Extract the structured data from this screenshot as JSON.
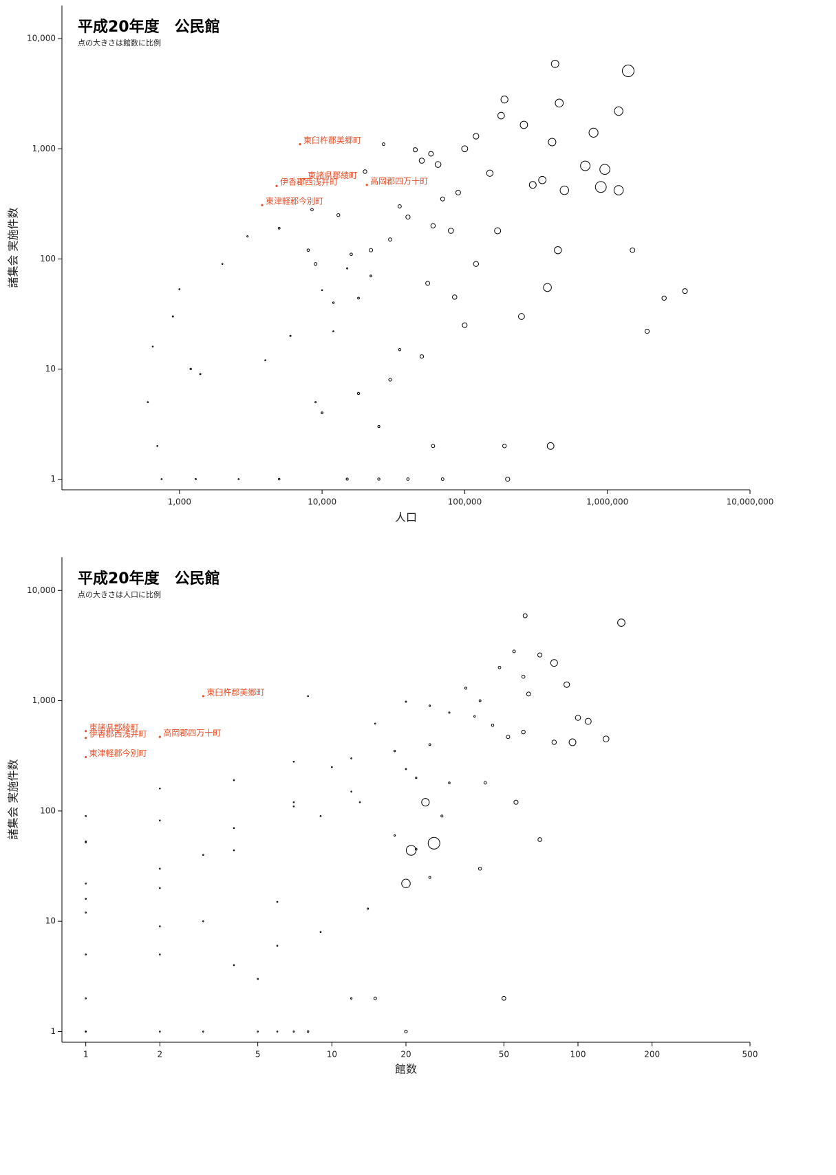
{
  "chart_data": [
    {
      "type": "scatter",
      "title": "平成20年度　公民館",
      "subtitle": "点の大きさは館数に比例",
      "x_label": "人口",
      "y_label": "諸集会 実施件数",
      "log_x": true,
      "log_y": true,
      "point_color": "#000000",
      "annotation_color": "#e8502a",
      "xlim": [
        150,
        10000000
      ],
      "ylim": [
        0.8,
        20000
      ],
      "xticks": [
        {
          "value": 1000,
          "label": "1,000"
        },
        {
          "value": 10000,
          "label": "10,000"
        },
        {
          "value": 100000,
          "label": "100,000"
        },
        {
          "value": 1000000,
          "label": "1,000,000"
        },
        {
          "value": 10000000,
          "label": "10,000,000"
        }
      ],
      "yticks": [
        1,
        10,
        100,
        {
          "value": 1000,
          "label": "1,000"
        },
        {
          "value": 10000,
          "label": "10,000"
        }
      ],
      "x": [
        1400000,
        430000,
        1200000,
        460000,
        190000,
        800000,
        180000,
        260000,
        410000,
        700000,
        960000,
        120000,
        100000,
        45000,
        58000,
        65000,
        50000,
        27000,
        20000,
        150000,
        300000,
        350000,
        500000,
        900000,
        1200000,
        90000,
        70000,
        35000,
        8000,
        9000,
        13000,
        40000,
        60000,
        80000,
        170000,
        380000,
        400000,
        450000,
        1500000,
        2500000,
        3500000,
        1900000,
        5000,
        3000,
        2000,
        1000,
        900,
        650,
        1200,
        1400,
        600,
        700,
        750,
        1300,
        2600,
        5000,
        15000,
        25000,
        40000,
        70000,
        200000,
        190000,
        60000,
        25000,
        10000,
        18000,
        30000,
        50000,
        100000,
        250000,
        6000,
        12000,
        22000,
        16000,
        30000,
        55000,
        85000,
        120000,
        10000,
        12000,
        15000,
        18000,
        8500,
        22000,
        4000,
        9000,
        35000
      ],
      "y": [
        5100,
        5900,
        2200,
        2600,
        2800,
        1400,
        2000,
        1650,
        1150,
        700,
        650,
        1300,
        1000,
        980,
        900,
        720,
        780,
        1100,
        620,
        600,
        470,
        520,
        420,
        450,
        420,
        400,
        350,
        300,
        120,
        90,
        250,
        240,
        200,
        180,
        180,
        55,
        2,
        120,
        120,
        44,
        51,
        22,
        190,
        160,
        90,
        53,
        30,
        16,
        10,
        9,
        5,
        2,
        1,
        1,
        1,
        1,
        1,
        1,
        1,
        1,
        1,
        2,
        2,
        3,
        4,
        6,
        8,
        13,
        25,
        30,
        20,
        40,
        70,
        110,
        150,
        60,
        45,
        90,
        52,
        22,
        82,
        44,
        280,
        120,
        12,
        5,
        15
      ],
      "size": [
        150,
        61,
        80,
        70,
        55,
        90,
        48,
        60,
        63,
        100,
        110,
        35,
        40,
        20,
        25,
        38,
        30,
        8,
        15,
        45,
        52,
        60,
        80,
        130,
        95,
        25,
        18,
        12,
        7,
        9,
        10,
        20,
        22,
        30,
        42,
        70,
        50,
        56,
        24,
        21,
        26,
        20,
        4,
        2,
        1,
        1,
        2,
        1,
        3,
        2,
        1,
        1,
        1,
        2,
        1,
        3,
        5,
        6,
        7,
        8,
        20,
        15,
        12,
        5,
        4,
        6,
        9,
        14,
        25,
        40,
        2,
        3,
        4,
        7,
        12,
        18,
        22,
        28,
        1,
        1,
        2,
        4,
        7,
        13,
        1,
        2,
        6
      ],
      "annotations": [
        {
          "text": "東臼杵郡美郷町",
          "x": 7000,
          "y": 1100
        },
        {
          "text": "東諸県郡綾町",
          "x": 7500,
          "y": 530
        },
        {
          "text": "伊香郡西浅井町",
          "x": 4800,
          "y": 460
        },
        {
          "text": "高岡郡四万十町",
          "x": 20600,
          "y": 470
        },
        {
          "text": "東津軽郡今別町",
          "x": 3800,
          "y": 308
        }
      ]
    },
    {
      "type": "scatter",
      "title": "平成20年度　公民館",
      "subtitle": "点の大きさは人口に比例",
      "x_label": "館数",
      "y_label": "諸集会 実施件数",
      "log_x": true,
      "log_y": true,
      "point_color": "#000000",
      "annotation_color": "#e8502a",
      "xlim": [
        0.8,
        500
      ],
      "ylim": [
        0.8,
        20000
      ],
      "xticks": [
        1,
        2,
        5,
        10,
        20,
        50,
        100,
        200,
        500
      ],
      "yticks": [
        1,
        10,
        100,
        {
          "value": 1000,
          "label": "1,000"
        },
        {
          "value": 10000,
          "label": "10,000"
        }
      ],
      "x": [
        150,
        61,
        80,
        70,
        55,
        90,
        48,
        60,
        63,
        100,
        110,
        35,
        40,
        20,
        25,
        38,
        30,
        8,
        15,
        45,
        52,
        60,
        80,
        130,
        95,
        25,
        18,
        12,
        7,
        9,
        10,
        20,
        22,
        30,
        42,
        70,
        50,
        56,
        24,
        21,
        26,
        20,
        4,
        2,
        1,
        1,
        2,
        1,
        3,
        2,
        1,
        1,
        1,
        2,
        1,
        3,
        5,
        6,
        7,
        8,
        20,
        15,
        12,
        5,
        4,
        6,
        9,
        14,
        25,
        40,
        2,
        3,
        4,
        7,
        12,
        18,
        22,
        28,
        1,
        1,
        2,
        4,
        7,
        13,
        1,
        2,
        6
      ],
      "y": [
        5100,
        5900,
        2200,
        2600,
        2800,
        1400,
        2000,
        1650,
        1150,
        700,
        650,
        1300,
        1000,
        980,
        900,
        720,
        780,
        1100,
        620,
        600,
        470,
        520,
        420,
        450,
        420,
        400,
        350,
        300,
        120,
        90,
        250,
        240,
        200,
        180,
        180,
        55,
        2,
        120,
        120,
        44,
        51,
        22,
        190,
        160,
        90,
        53,
        30,
        16,
        10,
        9,
        5,
        2,
        1,
        1,
        1,
        1,
        1,
        1,
        1,
        1,
        1,
        2,
        2,
        3,
        4,
        6,
        8,
        13,
        25,
        30,
        20,
        40,
        70,
        110,
        150,
        60,
        45,
        90,
        52,
        22,
        82,
        44,
        280,
        120,
        12,
        5,
        15
      ],
      "size": [
        1400000,
        430000,
        1200000,
        460000,
        190000,
        800000,
        180000,
        260000,
        410000,
        700000,
        960000,
        120000,
        100000,
        45000,
        58000,
        65000,
        50000,
        27000,
        20000,
        150000,
        300000,
        350000,
        500000,
        900000,
        1200000,
        90000,
        70000,
        35000,
        8000,
        9000,
        13000,
        40000,
        60000,
        80000,
        170000,
        380000,
        400000,
        450000,
        1500000,
        2500000,
        3500000,
        1900000,
        5000,
        3000,
        2000,
        1000,
        900,
        650,
        1200,
        1400,
        600,
        700,
        750,
        1300,
        2600,
        5000,
        15000,
        25000,
        40000,
        70000,
        200000,
        190000,
        60000,
        25000,
        10000,
        18000,
        30000,
        50000,
        100000,
        250000,
        6000,
        12000,
        22000,
        16000,
        30000,
        55000,
        85000,
        120000,
        10000,
        12000,
        15000,
        18000,
        8500,
        22000,
        4000,
        9000,
        35000
      ],
      "annotations": [
        {
          "text": "東臼杵郡美郷町",
          "x": 3,
          "y": 1100
        },
        {
          "text": "東諸県郡綾町",
          "x": 1,
          "y": 530
        },
        {
          "text": "伊香郡西浅井町",
          "x": 1,
          "y": 460
        },
        {
          "text": "高岡郡四万十町",
          "x": 2,
          "y": 470
        },
        {
          "text": "東津軽郡今別町",
          "x": 1,
          "y": 308
        }
      ]
    }
  ]
}
